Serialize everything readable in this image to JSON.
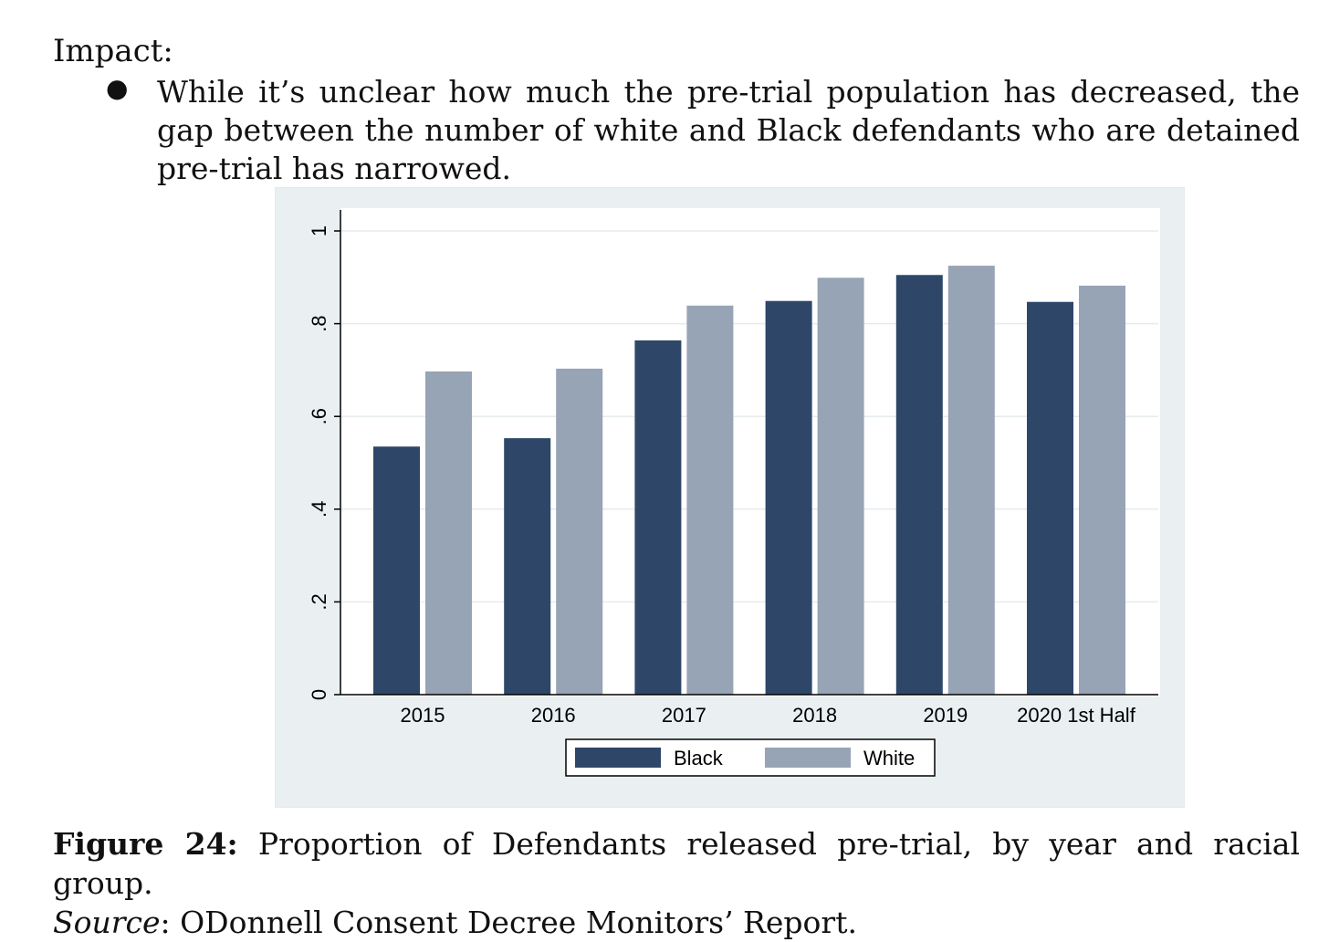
{
  "heading": "Impact:",
  "bullet_text": "While it’s unclear how much the pre-trial population has decreased, the gap between the number of white and Black defendants who are detained pre-trial has narrowed.",
  "caption": {
    "label": "Figure 24:",
    "text": " Proportion of Defendants released pre-trial, by year and racial group.",
    "source_label": "Source",
    "source_text": ": ODonnell Consent Decree Monitors’ Report."
  },
  "colors": {
    "black_series": "#2e4769",
    "white_series": "#97a4b5",
    "panel_bg": "#eaf0f2",
    "plot_bg": "#ffffff"
  },
  "chart_data": {
    "type": "bar",
    "categories": [
      "2015",
      "2016",
      "2017",
      "2018",
      "2019",
      "2020 1st Half"
    ],
    "series": [
      {
        "name": "Black",
        "values": [
          0.535,
          0.553,
          0.764,
          0.849,
          0.905,
          0.847
        ]
      },
      {
        "name": "White",
        "values": [
          0.697,
          0.703,
          0.839,
          0.899,
          0.925,
          0.882
        ]
      }
    ],
    "ylim": [
      0,
      1.04
    ],
    "yticks": [
      0,
      0.2,
      0.4,
      0.6,
      0.8,
      1
    ],
    "ytick_labels": [
      "0",
      ".2",
      ".4",
      ".6",
      ".8",
      "1"
    ],
    "title": "",
    "xlabel": "",
    "ylabel": "",
    "grid": "horizontal",
    "legend_position": "bottom"
  }
}
